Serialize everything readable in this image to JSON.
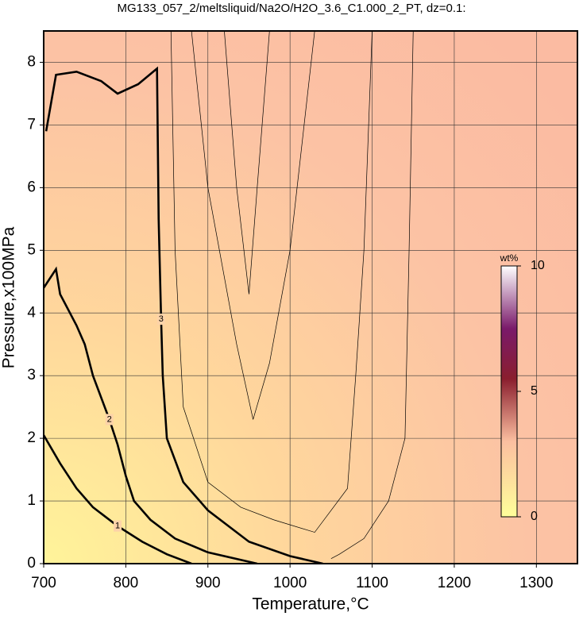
{
  "chart_data": {
    "type": "contour",
    "title": "MG133_057_2/meltsliquid/Na2O/H2O_3.6_C1.000_2_PT, dz=0.1:",
    "x_label": "Temperature,°C",
    "y_label": "Pressure,x100MPa",
    "xlim": [
      700,
      1350
    ],
    "ylim": [
      0,
      8.5
    ],
    "xticks": [
      700,
      800,
      900,
      1000,
      1100,
      1200,
      1300
    ],
    "yticks": [
      0,
      1,
      2,
      3,
      4,
      5,
      6,
      7,
      8
    ],
    "grid": true,
    "contours": [
      {
        "level": 1,
        "major": true,
        "x": [
          700,
          720,
          740,
          760,
          790,
          820,
          850,
          880
        ],
        "y": [
          2.05,
          1.6,
          1.2,
          0.9,
          0.6,
          0.35,
          0.15,
          0
        ]
      },
      {
        "level": 2,
        "major": true,
        "x": [
          700,
          715,
          720,
          740,
          750,
          760,
          770,
          780,
          790,
          800,
          810,
          830,
          860,
          900,
          960
        ],
        "y": [
          4.4,
          4.7,
          4.3,
          3.8,
          3.5,
          3.0,
          2.65,
          2.3,
          1.9,
          1.4,
          1.0,
          0.7,
          0.4,
          0.18,
          0
        ]
      },
      {
        "level": 3,
        "major": true,
        "x": [
          703,
          715,
          740,
          770,
          790,
          815,
          838,
          840,
          843,
          845,
          850,
          870,
          900,
          950,
          1000,
          1040
        ],
        "y": [
          6.9,
          7.8,
          7.85,
          7.7,
          7.5,
          7.65,
          7.9,
          5.5,
          3.9,
          3.0,
          2.0,
          1.3,
          0.85,
          0.35,
          0.12,
          0
        ]
      },
      {
        "level": 3.3,
        "major": false,
        "x": [
          920,
          935,
          950,
          960,
          975
        ],
        "y": [
          8.5,
          6.0,
          4.3,
          6.0,
          8.5
        ]
      },
      {
        "level": 3.2,
        "major": false,
        "x": [
          880,
          900,
          935,
          955,
          975,
          1000,
          1030
        ],
        "y": [
          8.5,
          6.0,
          3.5,
          2.3,
          3.2,
          5.0,
          8.5
        ]
      },
      {
        "level": 3.1,
        "major": false,
        "x": [
          1100,
          1090,
          1080,
          1070,
          1030,
          980,
          940,
          900,
          870,
          860,
          855
        ],
        "y": [
          8.5,
          5.0,
          3.0,
          1.2,
          0.5,
          0.7,
          0.9,
          1.3,
          2.5,
          5.0,
          8.5
        ]
      },
      {
        "level": 3.05,
        "major": false,
        "x": [
          1150,
          1145,
          1140,
          1120,
          1090,
          1060,
          1050
        ],
        "y": [
          8.5,
          5.0,
          2.0,
          1.0,
          0.4,
          0.15,
          0.08
        ]
      }
    ],
    "colorbar": {
      "label": "wt%",
      "lim": [
        0,
        10
      ],
      "ticks": [
        0,
        5,
        10
      ]
    }
  }
}
